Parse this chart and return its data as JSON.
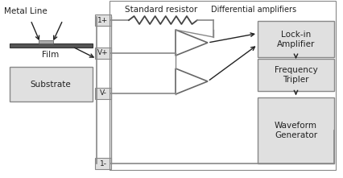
{
  "bg_color": "#ffffff",
  "line_color": "#888888",
  "box_fill": "#e0e0e0",
  "text_color": "#222222",
  "metal_line_label": "Metal Line",
  "film_label": "Film",
  "substrate_label": "Substrate",
  "std_resistor_label": "Standard resistor",
  "diff_amp_label": "Differential amplifiers",
  "lockin_label": [
    "Lock-in",
    "Amplifier"
  ],
  "freq_tripler_label": [
    "Frequency",
    "Tripler"
  ],
  "waveform_label": [
    "Waveform",
    "Generator"
  ],
  "node_labels": [
    "1+",
    "V+",
    "V-",
    "1-"
  ],
  "figsize": [
    4.26,
    2.21
  ],
  "dpi": 100
}
